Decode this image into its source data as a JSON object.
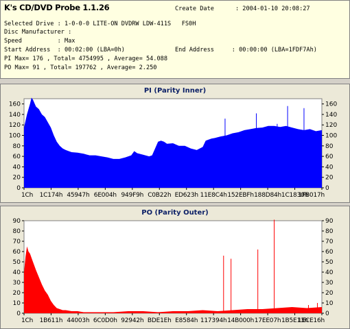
{
  "app": {
    "title": "K's CD/DVD Probe 1.1.26"
  },
  "info": {
    "create_date_line": "Create Date      : 2004-01-10 20:08:27",
    "drive_line": "Selected Drive : 1-0-0-0 LITE-ON DVDRW LDW-411S   FS0H",
    "manufacturer_line": "Disc Manufacturer :",
    "speed_line": "Speed          : Max",
    "start_address_line": "Start Address  : 00:02:00 (LBA=0h)",
    "end_address_line": "End Address     : 00:00:00 (LBA=1FDF7Ah)",
    "pi_line": "PI Max= 176 , Total= 4754995 , Average= 54.088",
    "po_line": "PO Max= 91 , Total= 197762 , Average= 2.250"
  },
  "colors": {
    "pi_series": "#0000ff",
    "po_series": "#ff0000",
    "title_text": "#0b1f66",
    "info_background": "#ffffe1"
  },
  "chart_data": [
    {
      "type": "area",
      "title": "PI (Parity Inner)",
      "ylim": [
        0,
        170
      ],
      "y_ticks": [
        0,
        20,
        40,
        60,
        80,
        100,
        120,
        140,
        160
      ],
      "x_tick_labels": [
        "1Ch",
        "1C174h",
        "45947h",
        "6E004h",
        "949F9h",
        "C0B22h",
        "ED623h",
        "11E8C4h",
        "152EBFh",
        "188D84h",
        "1C1830h",
        "1FB017h"
      ],
      "x_range": [
        0,
        1
      ],
      "grid": false,
      "series": [
        {
          "color": "#0000ff",
          "x": [
            0.0,
            0.01,
            0.02,
            0.025,
            0.03,
            0.04,
            0.05,
            0.06,
            0.07,
            0.08,
            0.09,
            0.1,
            0.11,
            0.12,
            0.13,
            0.14,
            0.15,
            0.16,
            0.18,
            0.2,
            0.22,
            0.24,
            0.26,
            0.28,
            0.3,
            0.32,
            0.34,
            0.36,
            0.37,
            0.38,
            0.4,
            0.42,
            0.43,
            0.44,
            0.45,
            0.46,
            0.47,
            0.48,
            0.5,
            0.52,
            0.54,
            0.56,
            0.58,
            0.6,
            0.61,
            0.62,
            0.63,
            0.64,
            0.66,
            0.68,
            0.7,
            0.72,
            0.74,
            0.76,
            0.78,
            0.8,
            0.82,
            0.84,
            0.86,
            0.88,
            0.9,
            0.92,
            0.94,
            0.96,
            0.98,
            1.0
          ],
          "y": [
            115,
            140,
            160,
            172,
            168,
            155,
            150,
            140,
            135,
            125,
            115,
            100,
            88,
            80,
            75,
            72,
            70,
            68,
            67,
            65,
            62,
            62,
            60,
            58,
            55,
            55,
            58,
            62,
            70,
            66,
            63,
            60,
            62,
            75,
            88,
            90,
            88,
            84,
            85,
            80,
            80,
            75,
            72,
            78,
            90,
            92,
            94,
            95,
            98,
            100,
            104,
            106,
            110,
            112,
            114,
            115,
            118,
            118,
            116,
            118,
            115,
            112,
            110,
            112,
            108,
            110
          ]
        }
      ],
      "spikes": [
        {
          "x": 0.675,
          "y": 132
        },
        {
          "x": 0.78,
          "y": 142
        },
        {
          "x": 0.85,
          "y": 122
        },
        {
          "x": 0.885,
          "y": 156
        },
        {
          "x": 0.94,
          "y": 152
        }
      ]
    },
    {
      "type": "area",
      "title": "PO (Parity Outer)",
      "ylim": [
        0,
        90
      ],
      "y_ticks": [
        0,
        10,
        20,
        30,
        40,
        50,
        60,
        70,
        80,
        90
      ],
      "x_tick_labels": [
        "1Ch",
        "1B611h",
        "44003h",
        "6C0D0h",
        "92942h",
        "BDE1Eh",
        "E8584h",
        "117394h",
        "14B000h",
        "17EE07h",
        "1B5E13h",
        "1ECE16h"
      ],
      "x_range": [
        0,
        1
      ],
      "grid": false,
      "series": [
        {
          "color": "#ff0000",
          "x": [
            0.0,
            0.005,
            0.01,
            0.015,
            0.02,
            0.03,
            0.04,
            0.05,
            0.06,
            0.07,
            0.08,
            0.09,
            0.1,
            0.11,
            0.12,
            0.13,
            0.14,
            0.16,
            0.18,
            0.2,
            0.25,
            0.3,
            0.35,
            0.4,
            0.45,
            0.5,
            0.55,
            0.6,
            0.65,
            0.7,
            0.75,
            0.8,
            0.85,
            0.9,
            0.95,
            1.0
          ],
          "y": [
            40,
            55,
            65,
            60,
            58,
            50,
            42,
            35,
            28,
            22,
            18,
            12,
            8,
            5,
            4,
            3,
            3,
            2,
            2,
            1,
            1,
            1,
            2,
            2,
            1,
            2,
            2,
            3,
            2,
            3,
            4,
            4,
            5,
            6,
            5,
            6
          ]
        }
      ],
      "spikes": [
        {
          "x": 0.67,
          "y": 56
        },
        {
          "x": 0.695,
          "y": 53
        },
        {
          "x": 0.785,
          "y": 62
        },
        {
          "x": 0.84,
          "y": 91
        },
        {
          "x": 0.955,
          "y": 8
        },
        {
          "x": 0.985,
          "y": 10
        }
      ]
    }
  ]
}
